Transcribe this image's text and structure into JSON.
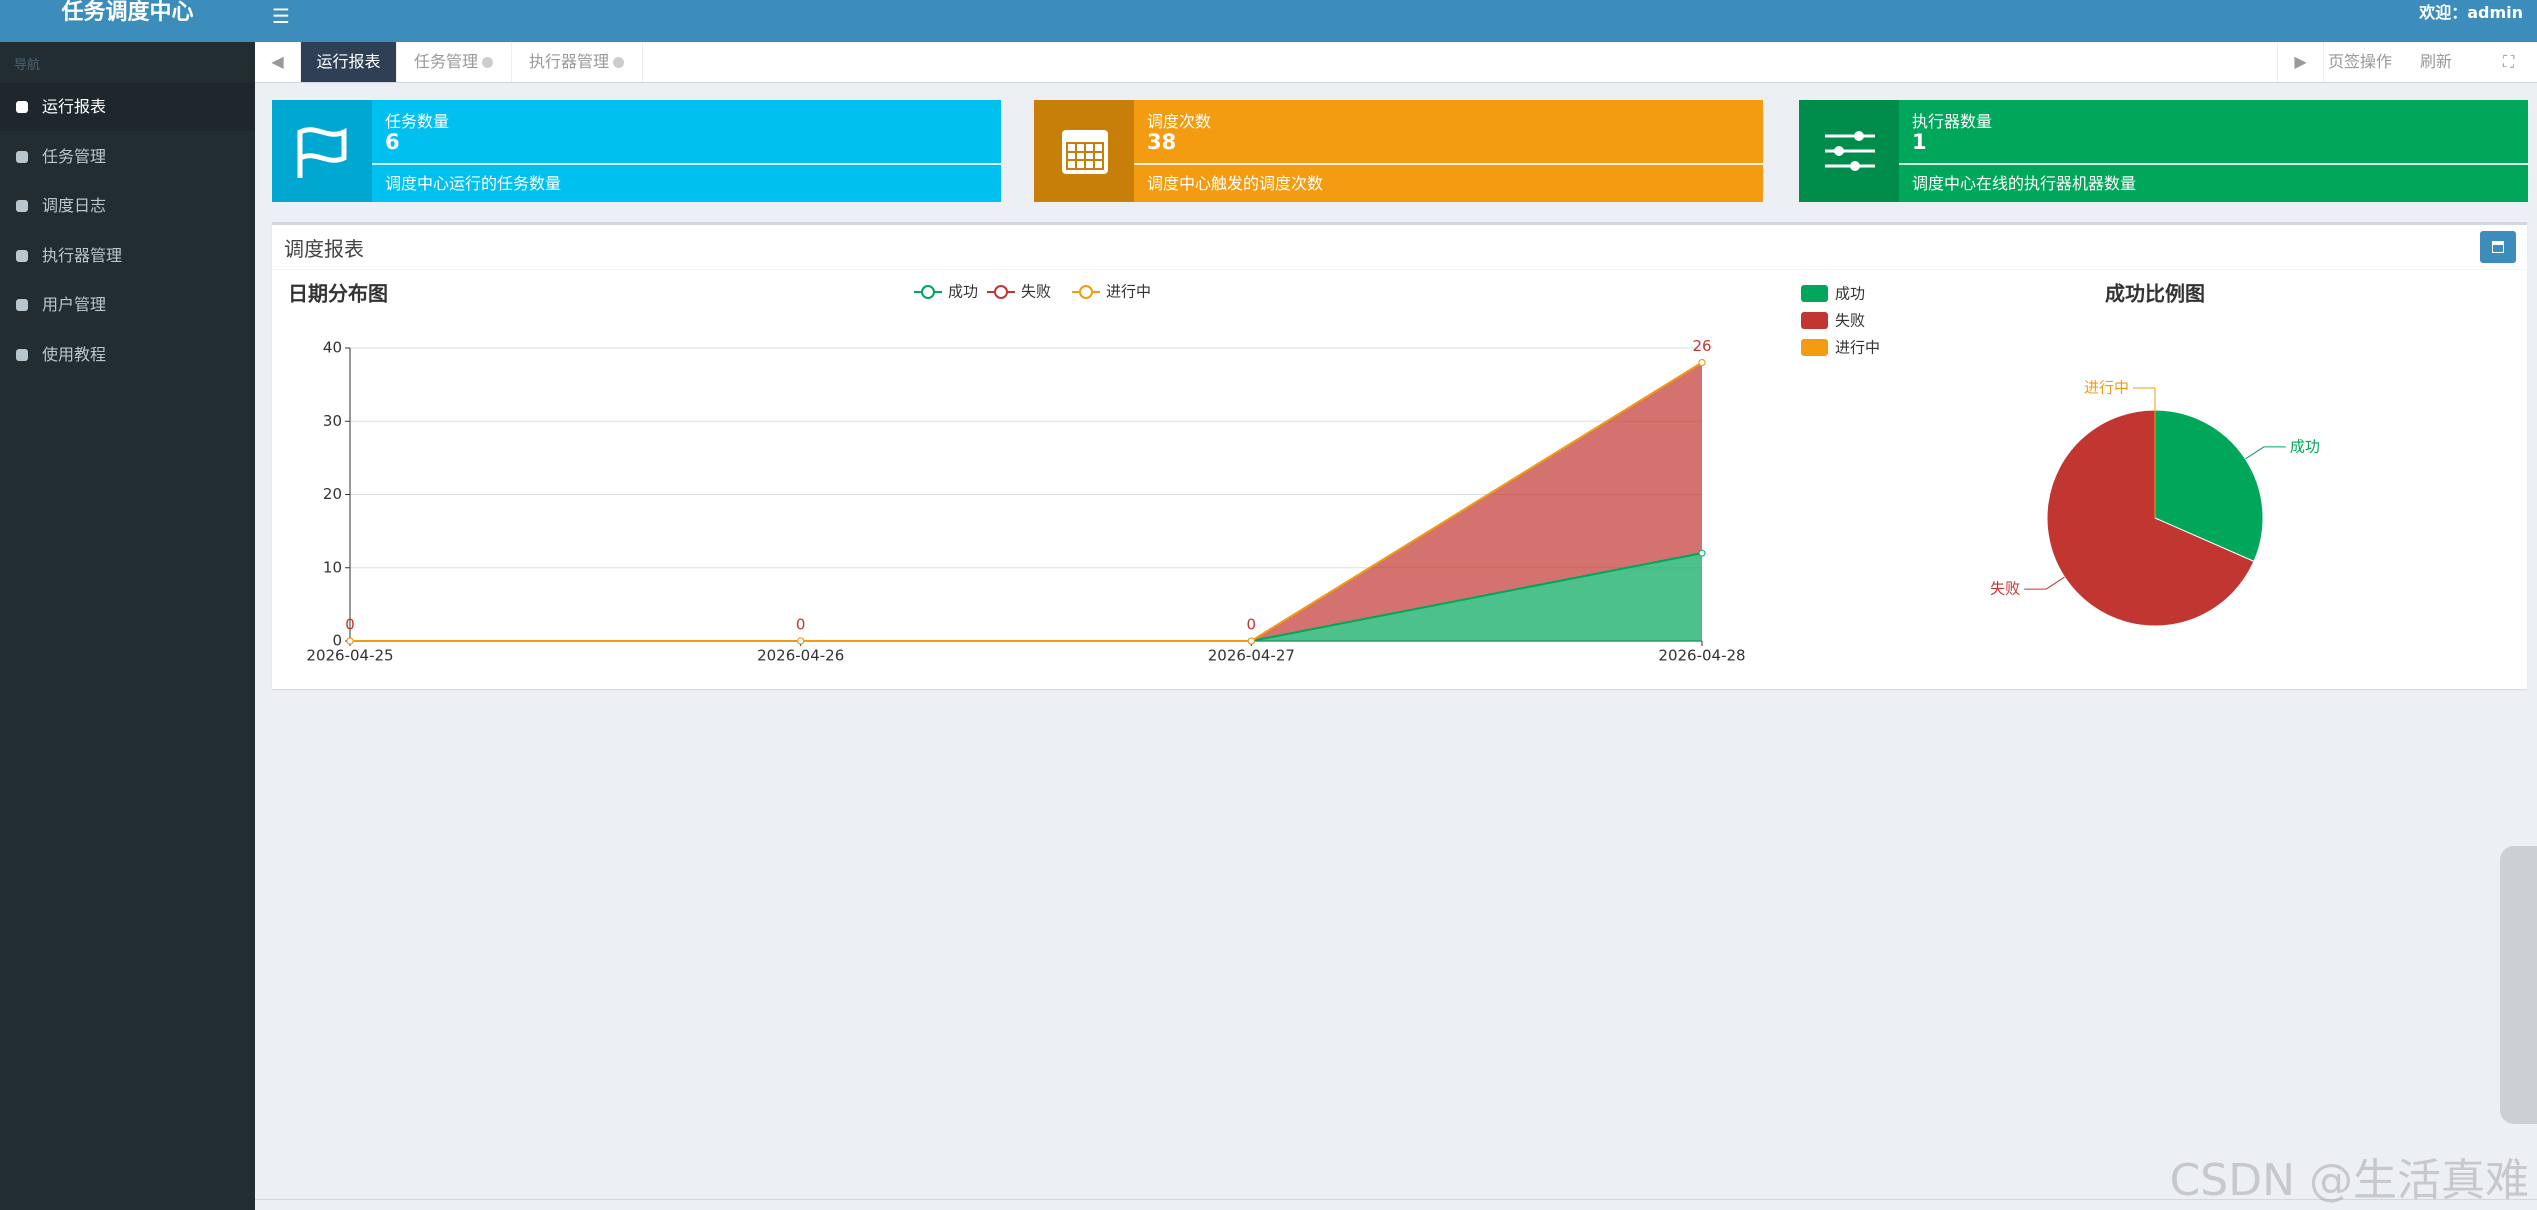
{
  "header": {
    "logo": "任务调度中心",
    "user": "欢迎：admin"
  },
  "sidebar": {
    "heading": "导航",
    "items": [
      "运行报表",
      "任务管理",
      "调度日志",
      "执行器管理",
      "用户管理",
      "使用教程"
    ]
  },
  "tabs": {
    "items": [
      "运行报表",
      "任务管理",
      "执行器管理"
    ],
    "actions": [
      "页签操作",
      "刷新"
    ]
  },
  "info_boxes": [
    {
      "label": "任务数量",
      "value": 6,
      "description": "调度中心运行的任务数量",
      "color": "#00c0ef",
      "icon_color": "#00a7d0"
    },
    {
      "label": "调度次数",
      "value": 38,
      "description": "调度中心触发的调度次数",
      "color": "#f39c12",
      "icon_color": "#c87f0a"
    },
    {
      "label": "执行器数量",
      "value": 1,
      "description": "调度中心在线的执行器机器数量",
      "color": "#00a65a",
      "icon_color": "#008d4c"
    }
  ],
  "report": {
    "title": "调度报表"
  },
  "line_chart": {
    "type": "area",
    "stacked": true,
    "title": "日期分布图",
    "categories": [
      "2026-04-25",
      "2026-04-26",
      "2026-04-27",
      "2026-04-28"
    ],
    "series": [
      {
        "name": "成功",
        "color": "#00a65a",
        "values": [
          0,
          0,
          0,
          12
        ]
      },
      {
        "name": "失败",
        "color": "#c23632",
        "values": [
          0,
          0,
          0,
          26
        ]
      },
      {
        "name": "进行中",
        "color": "#f39c12",
        "values": [
          0,
          0,
          0,
          0
        ]
      }
    ],
    "ylim": [
      0,
      40
    ],
    "yticks": [
      0,
      10,
      20,
      30,
      40
    ],
    "grid": true
  },
  "pie_chart": {
    "type": "pie",
    "title": "成功比例图",
    "categories": [
      "成功",
      "失败",
      "进行中"
    ],
    "values": [
      12,
      26,
      0
    ],
    "colors": [
      "#00a65a",
      "#c23632",
      "#f39c12"
    ]
  },
  "watermark": "CSDN @生活真难"
}
